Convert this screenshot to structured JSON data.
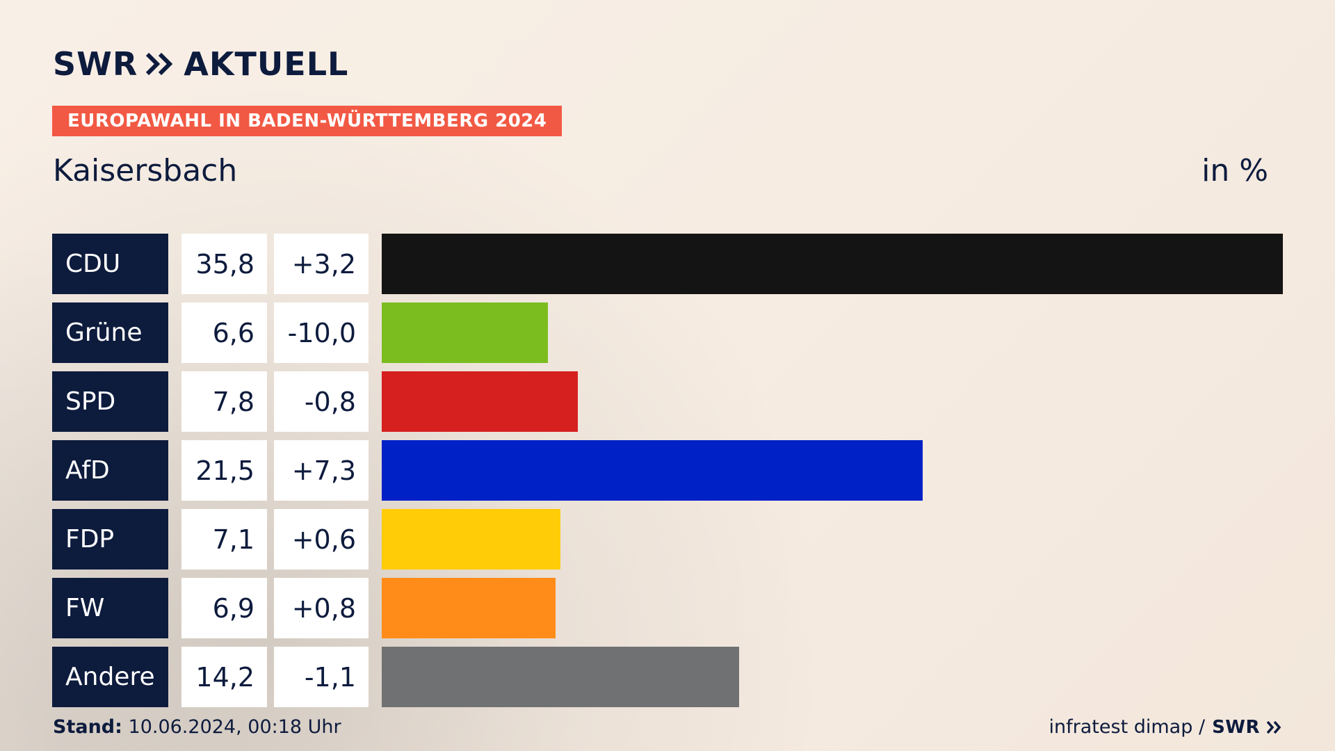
{
  "header": {
    "brand": "SWR",
    "brand_suffix": "AKTUELL",
    "banner": "EUROPAWAHL IN BADEN-WÜRTTEMBERG 2024",
    "place": "Kaisersbach",
    "unit": "in %"
  },
  "footer": {
    "stand_label": "Stand:",
    "stand_value": "10.06.2024, 00:18 Uhr",
    "source": "infratest dimap /",
    "source_brand": "SWR"
  },
  "colors": {
    "navy": "#0d1b3d",
    "banner": "#f25944"
  },
  "chart_data": {
    "type": "bar",
    "orientation": "horizontal",
    "categories": [
      "CDU",
      "Grüne",
      "SPD",
      "AfD",
      "FDP",
      "FW",
      "Andere"
    ],
    "values": [
      35.8,
      6.6,
      7.8,
      21.5,
      7.1,
      6.9,
      14.2
    ],
    "value_labels": [
      "35,8",
      "6,6",
      "7,8",
      "21,5",
      "7,1",
      "6,9",
      "14,2"
    ],
    "change_labels": [
      "+3,2",
      "-10,0",
      "-0,8",
      "+7,3",
      "+0,6",
      "+0,8",
      "-1,1"
    ],
    "changes": [
      3.2,
      -10.0,
      -0.8,
      7.3,
      0.6,
      0.8,
      -1.1
    ],
    "bar_colors": [
      "#141414",
      "#7bbd1f",
      "#d61f1f",
      "#0021c6",
      "#ffcc07",
      "#ff8c19",
      "#707173"
    ],
    "xlim": [
      0,
      35.8
    ]
  }
}
